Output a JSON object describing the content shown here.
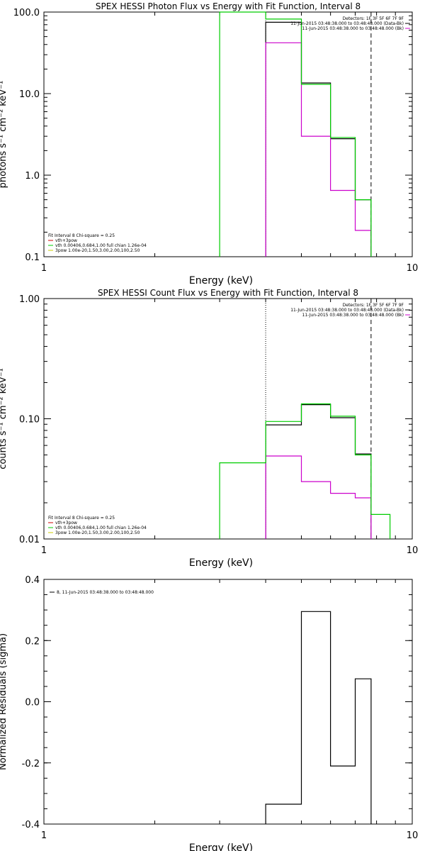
{
  "colors": {
    "data": "#000000",
    "bk": "#cc00cc",
    "model": "#00cc00",
    "vth": "#cc0000",
    "pow": "#cccc00"
  },
  "chart_data": [
    {
      "type": "line",
      "title": "SPEX HESSI Photon Flux vs Energy with Fit Function, Interval 8",
      "xlabel": "Energy (keV)",
      "ylabel": "photons s⁻¹ cm⁻² keV⁻¹",
      "xlog": true,
      "ylog": true,
      "xlim": [
        1,
        10
      ],
      "ylim": [
        0.1,
        100
      ],
      "x_ticks": [
        {
          "v": 1,
          "t": "1"
        },
        {
          "v": 10,
          "t": "10"
        }
      ],
      "y_ticks": [
        {
          "v": 0.1,
          "t": "0.1"
        },
        {
          "v": 1,
          "t": "1.0"
        },
        {
          "v": 10,
          "t": "10.0"
        },
        {
          "v": 100,
          "t": "100.0"
        }
      ],
      "legend_right": [
        {
          "text": "Detectors: 1F 3F 5F 6F 7F 9F"
        },
        {
          "text": "11-Jun-2015 03:48:38.000 to 03:48:48.000 (Data-Bk)",
          "color_key": "data"
        },
        {
          "text": "11-Jun-2015 03:48:38.000 to 03:48:48.000 (Bk)",
          "color_key": "bk"
        }
      ],
      "legend_left": [
        {
          "text": "Fit Interval 8    Chi-square = 0.25"
        },
        {
          "text": "vth+3pow",
          "color_key": "vth"
        },
        {
          "text": "vth 0.00406,0.684,1.00  full chian 1.26e-04",
          "color_key": "model"
        },
        {
          "text": "3pow 1.00e-20,1.50,3.00,2.00,100,2.50",
          "color_key": "pow"
        }
      ],
      "vlines": [
        {
          "x": 4.0,
          "style": "dotted"
        },
        {
          "x": 7.73,
          "style": "dashed"
        }
      ],
      "series": [
        {
          "color_key": "data",
          "edges": [
            4.0,
            5.0,
            6.0,
            7.0,
            7.73
          ],
          "values": [
            75,
            13.5,
            2.8,
            0.5
          ]
        },
        {
          "color_key": "bk",
          "edges": [
            4.0,
            5.0,
            6.0,
            7.0,
            7.73
          ],
          "values": [
            42,
            3.0,
            0.65,
            0.21
          ]
        },
        {
          "color_key": "model",
          "edges": [
            3.0,
            4.0,
            5.0,
            6.0,
            7.0,
            7.73
          ],
          "values": [
            100,
            82,
            13,
            2.9,
            0.5
          ]
        }
      ]
    },
    {
      "type": "line",
      "title": "SPEX HESSI Count Flux vs Energy with Fit Function, Interval 8",
      "xlabel": "Energy (keV)",
      "ylabel": "counts s⁻¹ cm⁻² keV⁻¹",
      "xlog": true,
      "ylog": true,
      "xlim": [
        1,
        10
      ],
      "ylim": [
        0.01,
        1.0
      ],
      "x_ticks": [
        {
          "v": 1,
          "t": "1"
        },
        {
          "v": 10,
          "t": "10"
        }
      ],
      "y_ticks": [
        {
          "v": 0.01,
          "t": "0.01"
        },
        {
          "v": 0.1,
          "t": "0.10"
        },
        {
          "v": 1.0,
          "t": "1.00"
        }
      ],
      "legend_right": [
        {
          "text": "Detectors: 1F 3F 5F 6F 7F 9F"
        },
        {
          "text": "11-Jun-2015 03:48:38.000 to 03:48:48.000 (Data-Bk)",
          "color_key": "data"
        },
        {
          "text": "11-Jun-2015 03:48:38.000 to 03:48:48.000 (Bk)",
          "color_key": "bk"
        }
      ],
      "legend_left": [
        {
          "text": "Fit Interval 8    Chi-square = 0.25"
        },
        {
          "text": "vth+3pow",
          "color_key": "vth"
        },
        {
          "text": "vth 0.00406,0.684,1.00  full chian 1.26e-04",
          "color_key": "model"
        },
        {
          "text": "3pow 1.00e-20,1.50,3.00,2.00,100,2.50",
          "color_key": "pow"
        }
      ],
      "vlines": [
        {
          "x": 4.0,
          "style": "dotted"
        },
        {
          "x": 7.73,
          "style": "dashed"
        }
      ],
      "series": [
        {
          "color_key": "data",
          "edges": [
            4.0,
            5.0,
            6.0,
            7.0,
            7.73
          ],
          "values": [
            0.089,
            0.131,
            0.102,
            0.051
          ]
        },
        {
          "color_key": "bk",
          "edges": [
            4.0,
            5.0,
            6.0,
            7.0,
            7.73
          ],
          "values": [
            0.049,
            0.03,
            0.024,
            0.022
          ]
        },
        {
          "color_key": "model",
          "edges": [
            3.0,
            4.0,
            5.0,
            6.0,
            7.0,
            7.73,
            8.7
          ],
          "values": [
            0.043,
            0.095,
            0.133,
            0.105,
            0.05,
            0.016
          ]
        }
      ]
    },
    {
      "type": "line",
      "title": "",
      "xlabel": "Energy (keV)",
      "ylabel": "Normalized Residuals (sigma)",
      "xlog": true,
      "ylog": false,
      "xlim": [
        1,
        10
      ],
      "ylim": [
        -0.4,
        0.4
      ],
      "x_ticks": [
        {
          "v": 1,
          "t": "1"
        },
        {
          "v": 10,
          "t": "10"
        }
      ],
      "y_ticks": [
        {
          "v": -0.4,
          "t": "-0.4"
        },
        {
          "v": -0.2,
          "t": "-0.2"
        },
        {
          "v": 0.0,
          "t": "0.0"
        },
        {
          "v": 0.2,
          "t": "0.2"
        },
        {
          "v": 0.4,
          "t": "0.4"
        }
      ],
      "legend_right": [],
      "legend_left": [],
      "legend_top": [
        {
          "text": "8, 11-Jun-2015 03:48:38.000 to 03:48:48.000",
          "color_key": "data"
        }
      ],
      "vlines": [],
      "series": [
        {
          "color_key": "data",
          "edges": [
            4.0,
            5.0,
            6.0,
            7.0,
            7.73
          ],
          "values": [
            -0.335,
            0.295,
            -0.21,
            0.075
          ],
          "drop_to_bottom": true
        }
      ]
    }
  ]
}
